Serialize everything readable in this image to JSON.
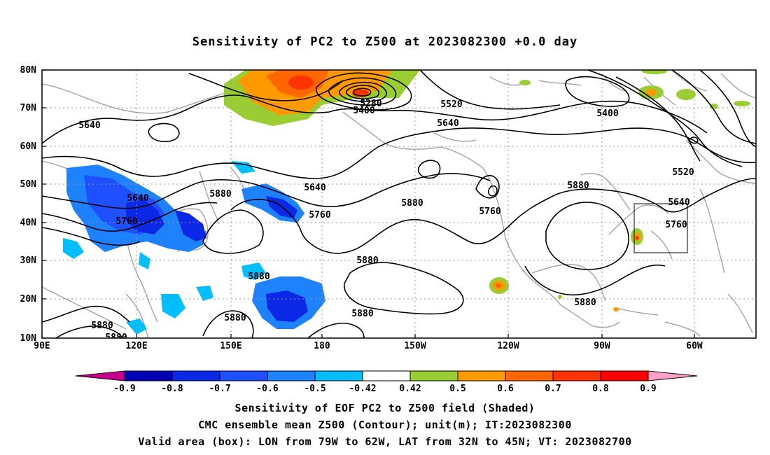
{
  "title": "Sensitivity of PC2 to Z500 at 2023082300 +0.0 day",
  "lat_labels": [
    "80N",
    "70N",
    "60N",
    "50N",
    "40N",
    "30N",
    "20N",
    "10N"
  ],
  "lon_labels": [
    "90E",
    "120E",
    "150E",
    "180",
    "150W",
    "120W",
    "90W",
    "60W"
  ],
  "contour_labels": [
    {
      "text": "5640"
    },
    {
      "text": "5640"
    },
    {
      "text": "5640"
    },
    {
      "text": "5640"
    },
    {
      "text": "5760"
    },
    {
      "text": "5760"
    },
    {
      "text": "5760"
    },
    {
      "text": "5760"
    },
    {
      "text": "5880"
    },
    {
      "text": "5880"
    },
    {
      "text": "5880"
    },
    {
      "text": "5880"
    },
    {
      "text": "5880"
    },
    {
      "text": "5880"
    },
    {
      "text": "5880"
    },
    {
      "text": "5880"
    },
    {
      "text": "5880"
    },
    {
      "text": "5880"
    },
    {
      "text": "5400"
    },
    {
      "text": "5400"
    },
    {
      "text": "5280"
    },
    {
      "text": "5520"
    },
    {
      "text": "5520"
    },
    {
      "text": "5640"
    }
  ],
  "colorbar": {
    "ticks": [
      "-0.9",
      "-0.8",
      "-0.7",
      "-0.6",
      "-0.5",
      "-0.42",
      "0.42",
      "0.5",
      "0.6",
      "0.7",
      "0.8",
      "0.9"
    ],
    "colors": [
      "#c8008c",
      "#0000b4",
      "#0a28e6",
      "#1e50ff",
      "#1e82ff",
      "#00beff",
      "#ffffff",
      "#9acd32",
      "#ff9900",
      "#ff6600",
      "#ff3300",
      "#ff0000",
      "#ffa0c8"
    ]
  },
  "captions": [
    "Sensitivity of EOF PC2 to Z500 field (Shaded)",
    "CMC ensemble mean Z500 (Contour); unit(m); IT:2023082300",
    "Valid area (box): LON from 79W to 62W, LAT from 32N to 45N; VT: 2023082700"
  ]
}
